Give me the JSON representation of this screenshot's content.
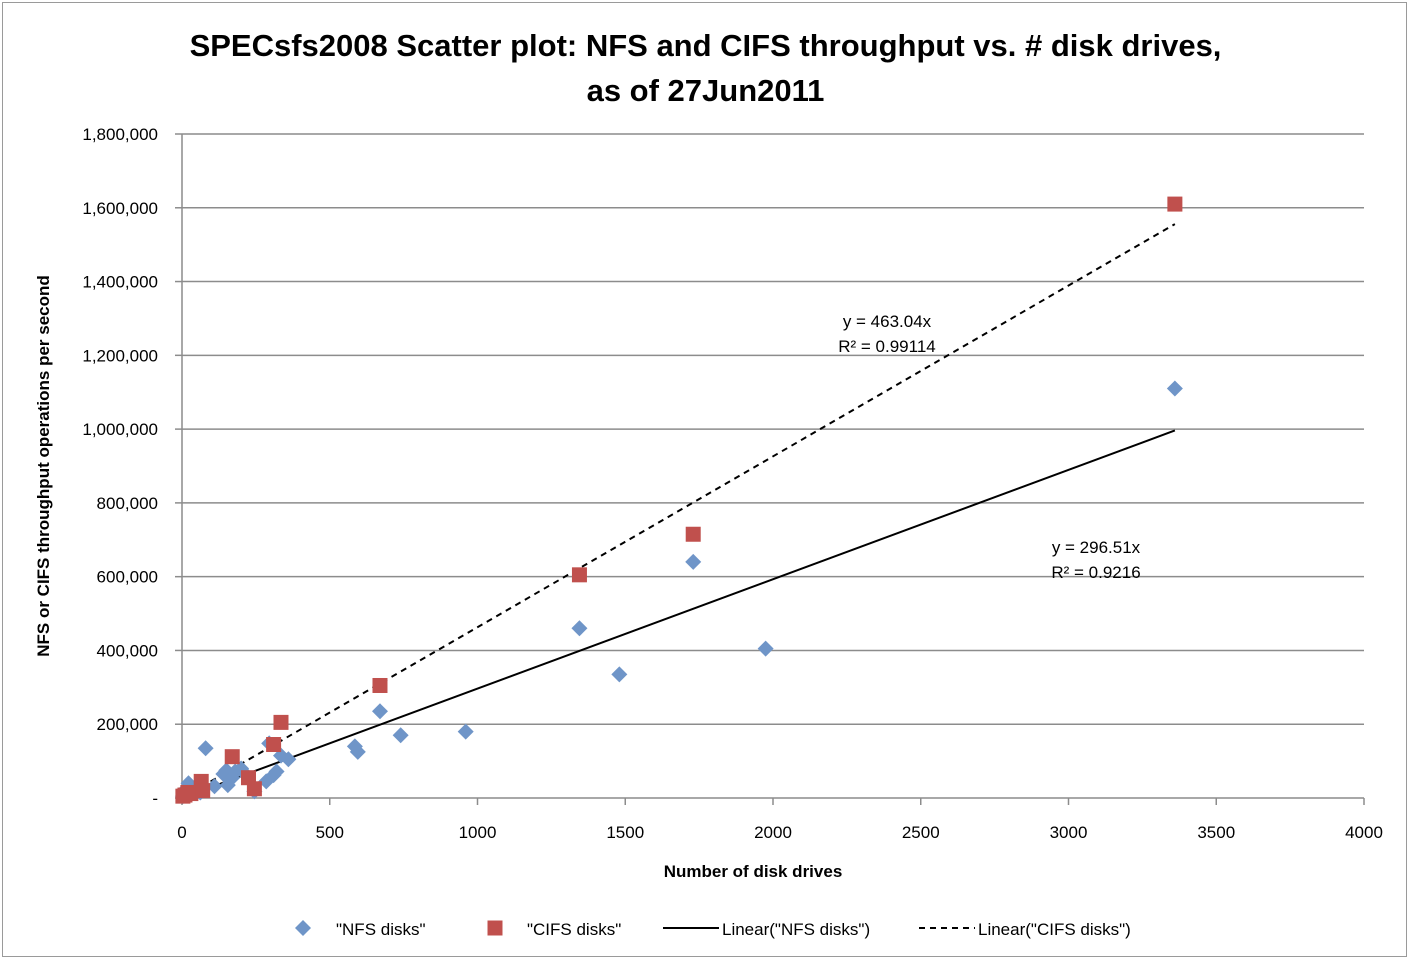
{
  "chart_data": {
    "type": "scatter",
    "title_line1": "SPECsfs2008 Scatter plot: NFS and CIFS throughput vs. # disk drives,",
    "title_line2": "as of 27Jun2011",
    "xlabel": "Number of disk drives",
    "ylabel": "NFS or CIFS throughput operations per second",
    "xlim": [
      0,
      4000
    ],
    "ylim": [
      0,
      1800000
    ],
    "x_ticks": [
      0,
      500,
      1000,
      1500,
      2000,
      2500,
      3000,
      3500,
      4000
    ],
    "x_tick_labels": [
      "0",
      "500",
      "1000",
      "1500",
      "2000",
      "2500",
      "3000",
      "3500",
      "4000"
    ],
    "y_ticks": [
      0,
      200000,
      400000,
      600000,
      800000,
      1000000,
      1200000,
      1400000,
      1600000,
      1800000
    ],
    "y_tick_labels": [
      "-",
      "200,000",
      "400,000",
      "600,000",
      "800,000",
      "1,000,000",
      "1,200,000",
      "1,400,000",
      "1,600,000",
      "1,800,000"
    ],
    "grid": "horizontal",
    "legend_position": "bottom",
    "series": [
      {
        "name": "\"NFS disks\"",
        "marker": "diamond",
        "color": "#6f95c8",
        "points": [
          [
            3,
            5000
          ],
          [
            8,
            10000
          ],
          [
            12,
            18000
          ],
          [
            18,
            28000
          ],
          [
            22,
            40000
          ],
          [
            30,
            12000
          ],
          [
            45,
            22000
          ],
          [
            55,
            30000
          ],
          [
            62,
            15000
          ],
          [
            80,
            135000
          ],
          [
            110,
            32000
          ],
          [
            140,
            65000
          ],
          [
            150,
            75000
          ],
          [
            155,
            35000
          ],
          [
            170,
            55000
          ],
          [
            180,
            72000
          ],
          [
            200,
            80000
          ],
          [
            210,
            68000
          ],
          [
            245,
            18000
          ],
          [
            285,
            45000
          ],
          [
            295,
            148000
          ],
          [
            310,
            62000
          ],
          [
            320,
            72000
          ],
          [
            335,
            115000
          ],
          [
            360,
            105000
          ],
          [
            585,
            140000
          ],
          [
            595,
            125000
          ],
          [
            670,
            235000
          ],
          [
            740,
            170000
          ],
          [
            960,
            180000
          ],
          [
            1345,
            460000
          ],
          [
            1480,
            335000
          ],
          [
            1730,
            640000
          ],
          [
            1975,
            405000
          ],
          [
            3360,
            1110000
          ]
        ]
      },
      {
        "name": "\"CIFS disks\"",
        "marker": "square",
        "color": "#c0504d",
        "points": [
          [
            3,
            5000
          ],
          [
            10,
            8000
          ],
          [
            20,
            15000
          ],
          [
            30,
            12000
          ],
          [
            65,
            45000
          ],
          [
            70,
            20000
          ],
          [
            170,
            112000
          ],
          [
            225,
            55000
          ],
          [
            245,
            25000
          ],
          [
            310,
            145000
          ],
          [
            335,
            205000
          ],
          [
            670,
            305000
          ],
          [
            1345,
            605000
          ],
          [
            1730,
            715000
          ],
          [
            3360,
            1610000
          ]
        ]
      }
    ],
    "trendlines": [
      {
        "name": "Linear(\"NFS disks\")",
        "style": "solid",
        "slope": 296.51,
        "x_range": [
          0,
          3360
        ],
        "equation": "y = 296.51x",
        "r2": "R² = 0.9216"
      },
      {
        "name": "Linear(\"CIFS disks\")",
        "style": "dashed",
        "slope": 463.04,
        "x_range": [
          0,
          3360
        ],
        "equation": "y = 463.04x",
        "r2": "R² = 0.99114"
      }
    ]
  }
}
